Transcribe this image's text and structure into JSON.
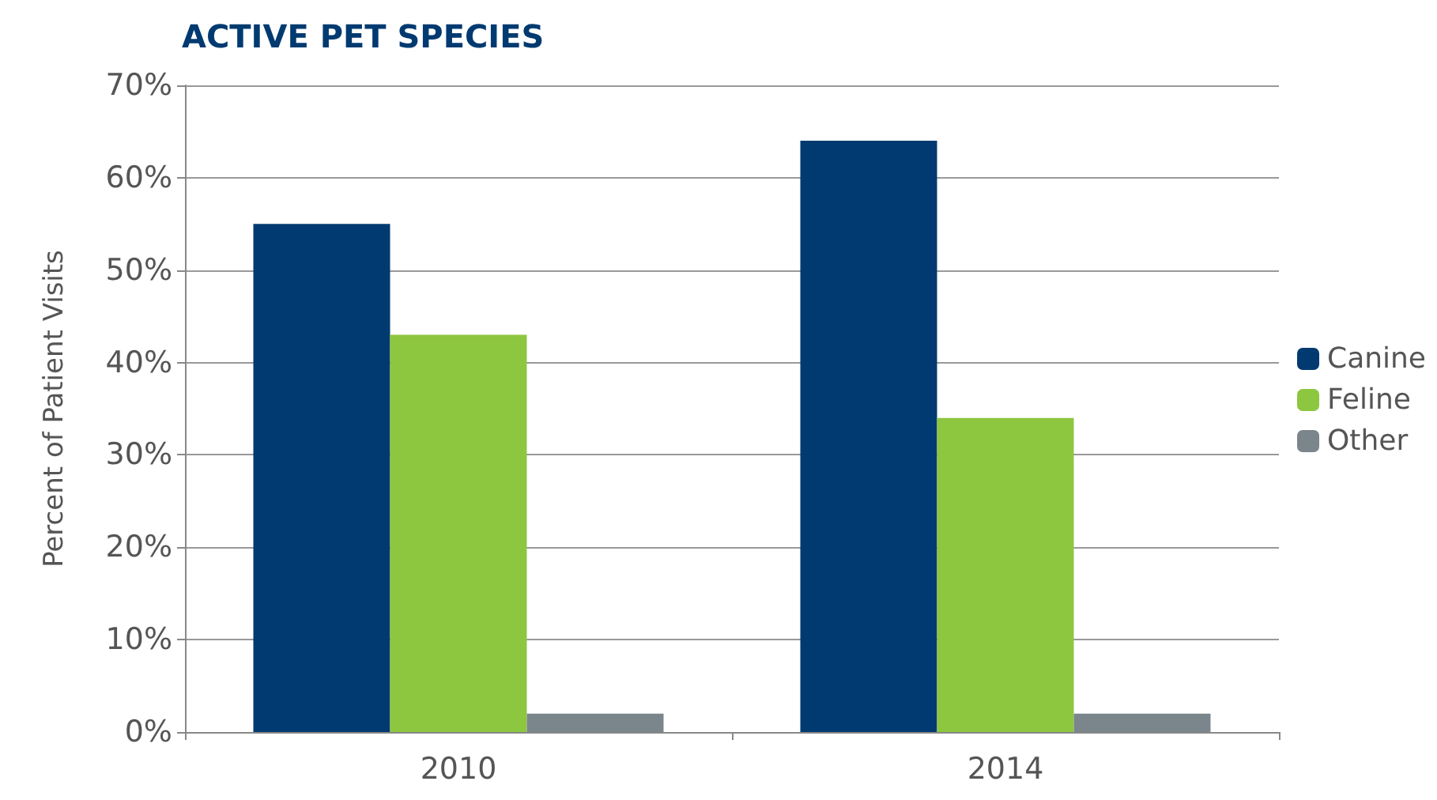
{
  "chart_data": {
    "type": "bar",
    "title": "ACTIVE PET SPECIES",
    "ylabel": "Percent of Patient Visits",
    "categories": [
      "2010",
      "2014"
    ],
    "series": [
      {
        "name": "Canine",
        "color": "#003a70",
        "values": [
          55,
          64
        ]
      },
      {
        "name": "Feline",
        "color": "#8dc63f",
        "values": [
          43,
          34
        ]
      },
      {
        "name": "Other",
        "color": "#7a868c",
        "values": [
          2,
          2
        ]
      }
    ],
    "ylim": [
      0,
      70
    ],
    "yticks": [
      {
        "value": 0,
        "label": "0%"
      },
      {
        "value": 10,
        "label": "10%"
      },
      {
        "value": 20,
        "label": "20%"
      },
      {
        "value": 30,
        "label": "30%"
      },
      {
        "value": 40,
        "label": "40%"
      },
      {
        "value": 50,
        "label": "50%"
      },
      {
        "value": 60,
        "label": "60%"
      },
      {
        "value": 70,
        "label": "70%"
      }
    ],
    "grid": "y",
    "legend": "right"
  }
}
